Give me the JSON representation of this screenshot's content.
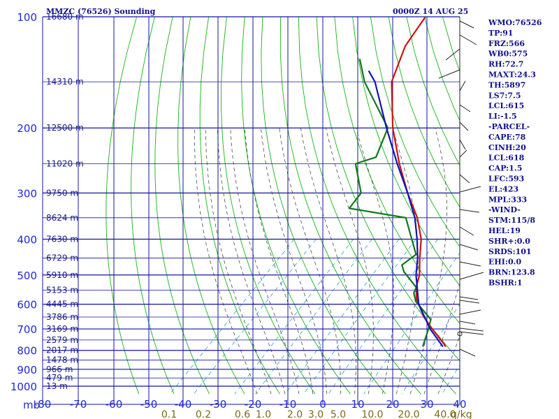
{
  "header": {
    "station": "MMZC (76526) Sounding",
    "time": "0000Z 14 AUG 25"
  },
  "chart_data": {
    "type": "line",
    "title": "MMZC (76526) Sounding",
    "xlabel": "",
    "ylabel": "mb",
    "pressure_axis": {
      "scale": "log",
      "range": [
        1000,
        100
      ],
      "ticks": [
        100,
        200,
        300,
        400,
        500,
        600,
        700,
        800,
        900,
        1000
      ]
    },
    "temperature_axis": {
      "unit": "C",
      "range": [
        -80,
        40
      ],
      "skewed": true,
      "ticks": [
        -80,
        -70,
        -60,
        -50,
        -40,
        -30,
        -20,
        -10,
        0,
        10,
        20,
        30,
        40
      ]
    },
    "mixing_ratio_labels": [
      "0.1",
      "0.2",
      "0.6",
      "1.0",
      "2.0",
      "3.0",
      "5.0",
      "10.0",
      "20.0",
      "40.0"
    ],
    "mixing_ratio_unit": "g/kg",
    "heights": [
      {
        "p": 100,
        "label": "16680 m"
      },
      {
        "p": 150,
        "label": "14310 m"
      },
      {
        "p": 200,
        "label": "12500 m"
      },
      {
        "p": 250,
        "label": "11020 m"
      },
      {
        "p": 300,
        "label": "9750 m"
      },
      {
        "p": 350,
        "label": "8624 m"
      },
      {
        "p": 400,
        "label": "7630 m"
      },
      {
        "p": 450,
        "label": "6729 m"
      },
      {
        "p": 500,
        "label": "5910 m"
      },
      {
        "p": 550,
        "label": "5153 m"
      },
      {
        "p": 600,
        "label": "4445 m"
      },
      {
        "p": 650,
        "label": "3786 m"
      },
      {
        "p": 700,
        "label": "3169 m"
      },
      {
        "p": 750,
        "label": "2579 m"
      },
      {
        "p": 800,
        "label": "2017 m"
      },
      {
        "p": 850,
        "label": "1478 m"
      },
      {
        "p": 900,
        "label": "966 m"
      },
      {
        "p": 950,
        "label": "479 m"
      },
      {
        "p": 1000,
        "label": "13 m"
      }
    ],
    "series": [
      {
        "color": "#c81414",
        "points": [
          [
            782,
            24.6
          ],
          [
            766,
            23.0
          ],
          [
            700,
            15.6
          ],
          [
            650,
            9.8
          ],
          [
            580,
            2.4
          ],
          [
            540,
            -1.0
          ],
          [
            500,
            -3.6
          ],
          [
            450,
            -8.4
          ],
          [
            400,
            -13.4
          ],
          [
            350,
            -20.7
          ],
          [
            300,
            -30.6
          ],
          [
            250,
            -41.4
          ],
          [
            200,
            -53.6
          ],
          [
            150,
            -67.2
          ],
          [
            120,
            -73.6
          ],
          [
            100,
            -76.2
          ]
        ]
      },
      {
        "color": "#0e7818",
        "points": [
          [
            782,
            18.0
          ],
          [
            770,
            17.5
          ],
          [
            700,
            14.5
          ],
          [
            660,
            12.5
          ],
          [
            590,
            3.0
          ],
          [
            560,
            0.0
          ],
          [
            540,
            -1.0
          ],
          [
            490,
            -9.0
          ],
          [
            470,
            -11.5
          ],
          [
            440,
            -10.5
          ],
          [
            350,
            -24.0
          ],
          [
            330,
            -43.0
          ],
          [
            300,
            -44.0
          ],
          [
            250,
            -54.0
          ],
          [
            240,
            -50.0
          ],
          [
            200,
            -55.0
          ],
          [
            150,
            -75.0
          ],
          [
            130,
            -83.0
          ]
        ]
      },
      {
        "color": "#1414b4",
        "points": [
          [
            782,
            23.8
          ],
          [
            700,
            15.0
          ],
          [
            600,
            4.6
          ],
          [
            500,
            -4.6
          ],
          [
            450,
            -9.0
          ],
          [
            400,
            -14.6
          ],
          [
            350,
            -21.4
          ],
          [
            300,
            -30.6
          ],
          [
            250,
            -42.0
          ],
          [
            200,
            -55.4
          ],
          [
            150,
            -72.0
          ],
          [
            140,
            -77.0
          ]
        ]
      }
    ]
  },
  "indices": [
    "WMO:76526",
    "TP:91",
    "FRZ:566",
    "WB0:575",
    "RH:72.7",
    "MAXT:24.3",
    "TH:5897",
    "LS7:7.5",
    "LCL:615",
    "LI:-1.5",
    "-PARCEL-",
    "CAPE:78",
    "CINH:20",
    "LCL:618",
    "CAP:1.5",
    "LFC:593",
    "EL:423",
    "MPL:333",
    "-WIND-",
    "STM:115/8",
    "HEL:19",
    "SHR+:0.0",
    "SRDS:101",
    "EHI:0.0",
    "BRN:123.8",
    "BSHR:1"
  ],
  "colors": {
    "grid": "#1414a0",
    "dry_adiabat": "#14b414",
    "moist_adiabat": "#4a4a4a",
    "mixing_ratio": "#28a0d0",
    "mixing_ratio_label": "#7a6a10"
  }
}
